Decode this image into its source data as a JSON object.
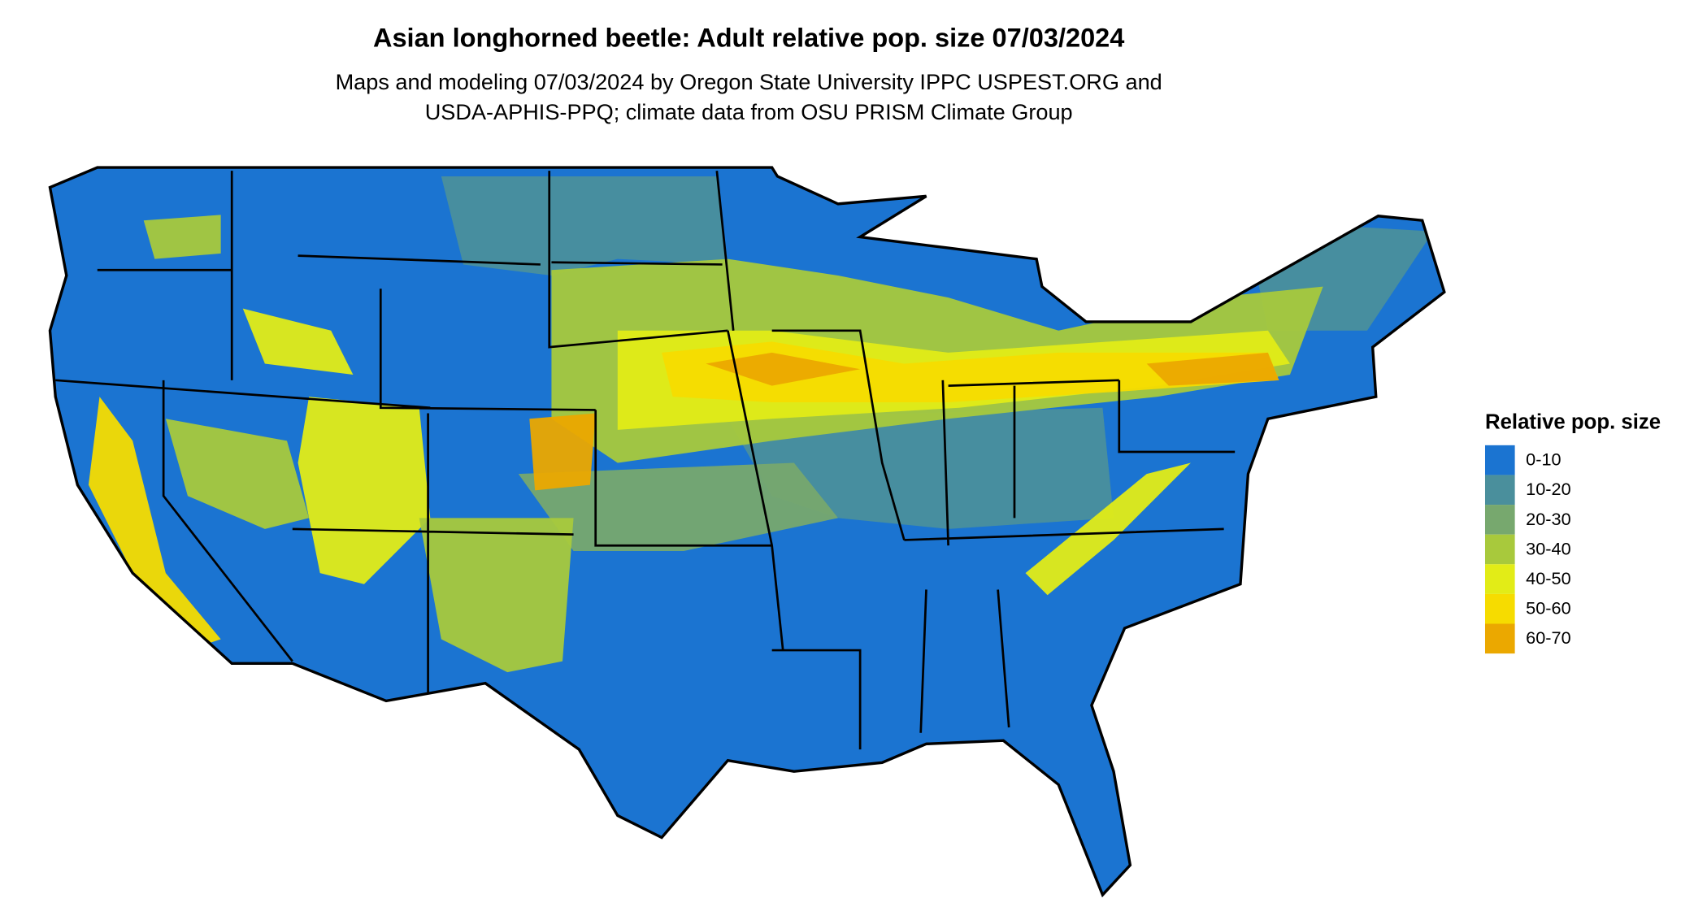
{
  "header": {
    "title": "Asian longhorned beetle: Adult relative pop. size 07/03/2024",
    "subtitle": [
      "Maps and modeling 07/03/2024 by Oregon State University IPPC USPEST.ORG and",
      "USDA-APHIS-PPQ; climate data from OSU PRISM Climate Group"
    ]
  },
  "legend": {
    "title": "Relative pop. size",
    "items": [
      {
        "label": "0-10",
        "color": "#1b74d1"
      },
      {
        "label": "10-20",
        "color": "#4a8f9c"
      },
      {
        "label": "20-30",
        "color": "#77a86e"
      },
      {
        "label": "30-40",
        "color": "#a8c93c"
      },
      {
        "label": "40-50",
        "color": "#e2ec17"
      },
      {
        "label": "50-60",
        "color": "#f6dc00"
      },
      {
        "label": "60-70",
        "color": "#eba800"
      }
    ]
  }
}
